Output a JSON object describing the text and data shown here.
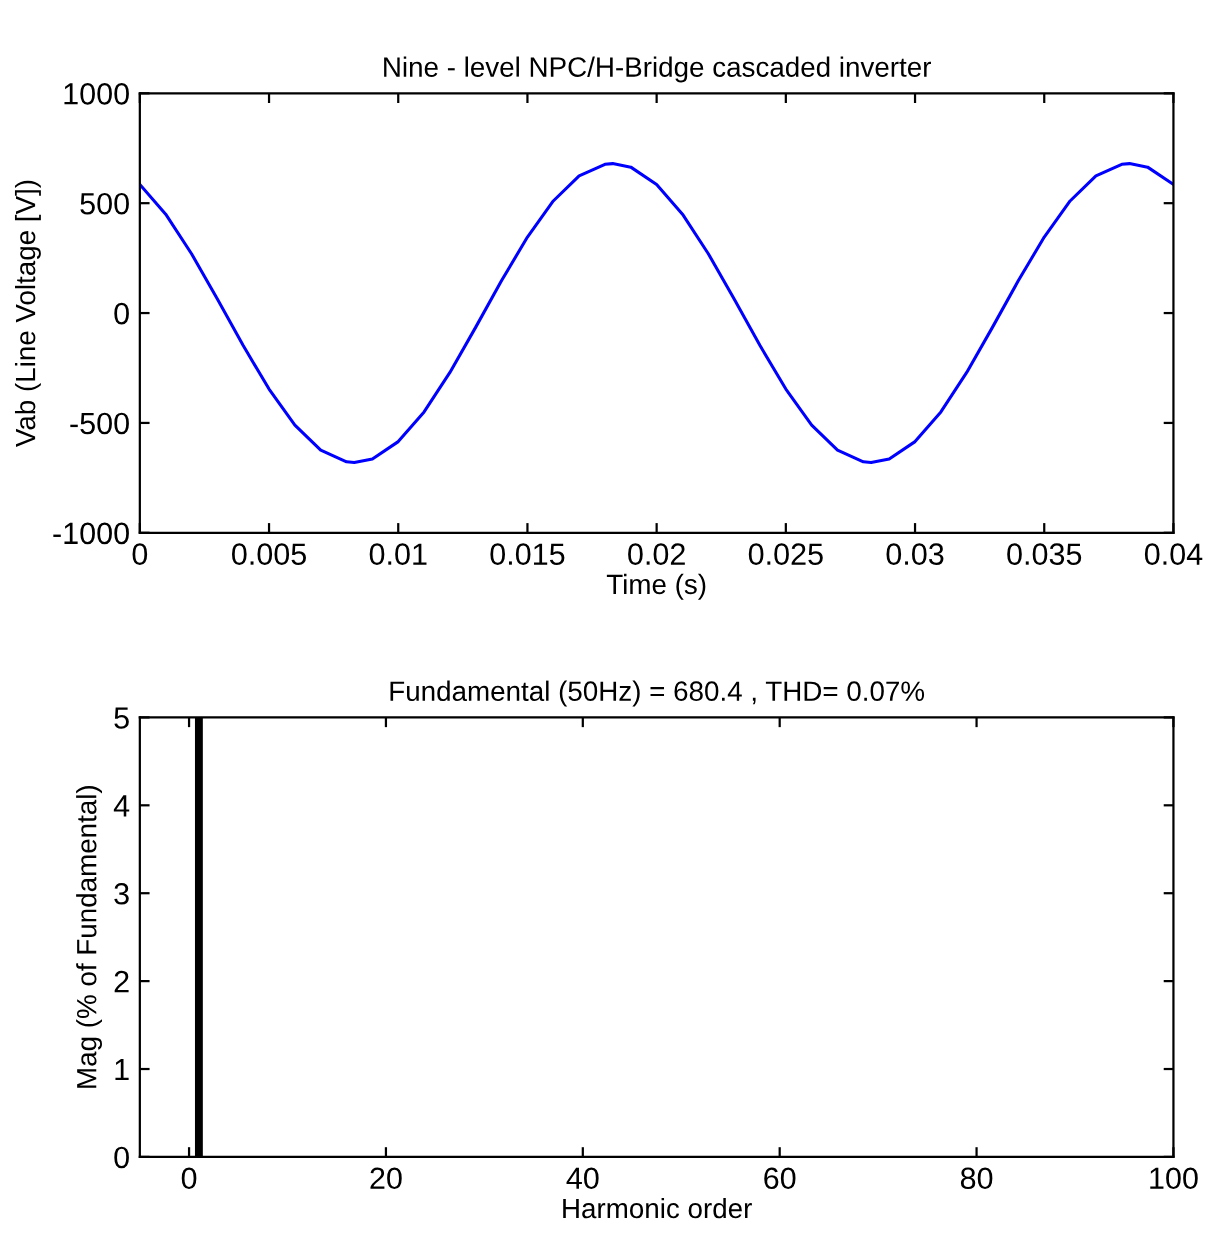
{
  "chart_data": [
    {
      "type": "line",
      "title": "Nine - level NPC/H-Bridge cascaded inverter",
      "xlabel": "Time (s)",
      "ylabel": "Vab (Line Voltage [V])",
      "series": [
        {
          "color": "#0000ff",
          "x": [
            0,
            0.001,
            0.002,
            0.003,
            0.004,
            0.005,
            0.006,
            0.007,
            0.008,
            0.0083,
            0.009,
            0.01,
            0.011,
            0.012,
            0.013,
            0.014,
            0.015,
            0.016,
            0.017,
            0.018,
            0.0183,
            0.019,
            0.02,
            0.021,
            0.022,
            0.023,
            0.024,
            0.025,
            0.026,
            0.027,
            0.028,
            0.0283,
            0.029,
            0.03,
            0.031,
            0.032,
            0.033,
            0.034,
            0.035,
            0.036,
            0.037,
            0.038,
            0.0383,
            0.039,
            0.04
          ],
          "values": [
            585,
            450,
            270,
            64,
            -148,
            -346,
            -510,
            -624,
            -677,
            -680,
            -664,
            -585,
            -450,
            -270,
            -64,
            148,
            346,
            510,
            624,
            677,
            680,
            664,
            585,
            450,
            270,
            64,
            -148,
            -346,
            -510,
            -624,
            -677,
            -680,
            -664,
            -585,
            -450,
            -270,
            -64,
            148,
            346,
            510,
            624,
            677,
            680,
            664,
            585
          ]
        }
      ],
      "xlim": [
        0,
        0.04
      ],
      "xticks": [
        0,
        0.005,
        0.01,
        0.015,
        0.02,
        0.025,
        0.03,
        0.035,
        0.04
      ],
      "ylim": [
        -1000,
        1000
      ],
      "yticks": [
        -1000,
        -500,
        0,
        500,
        1000
      ],
      "grid": false,
      "legend": false
    },
    {
      "type": "bar",
      "title": "Fundamental (50Hz) = 680.4 , THD= 0.07%",
      "xlabel": "Harmonic order",
      "ylabel": "Mag (% of Fundamental)",
      "series": [
        {
          "color": "#000000",
          "x": [
            0,
            1,
            2,
            10,
            20,
            30,
            40,
            50,
            60,
            70,
            80,
            90,
            98
          ],
          "values": [
            0,
            5,
            0,
            0,
            0,
            0,
            0,
            0,
            0,
            0,
            0,
            0,
            0
          ]
        }
      ],
      "xlim": [
        -5,
        100
      ],
      "xticks": [
        0,
        20,
        40,
        60,
        80,
        100
      ],
      "ylim": [
        0,
        5
      ],
      "yticks": [
        0,
        1,
        2,
        3,
        4,
        5
      ],
      "grid": false,
      "legend": false
    }
  ]
}
